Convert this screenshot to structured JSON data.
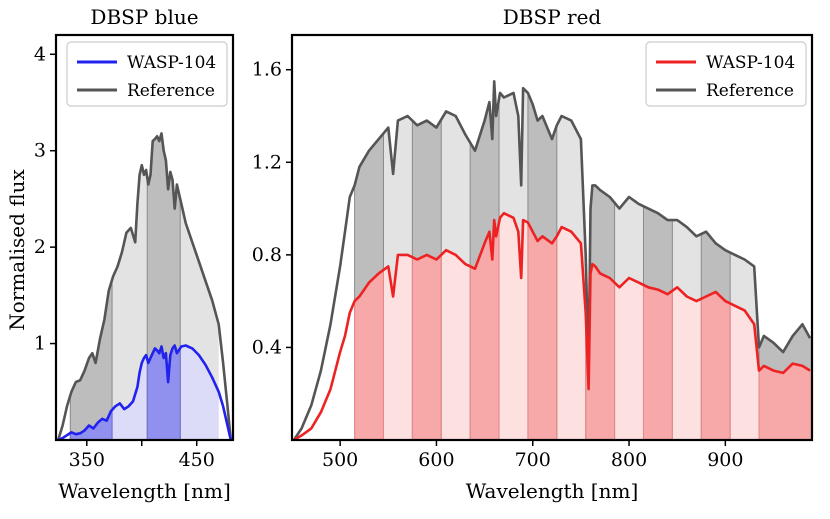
{
  "figure": {
    "ylabel": "Normalised flux"
  },
  "chart_data": [
    {
      "type": "line",
      "title": "DBSP blue",
      "xlabel": "Wavelength [nm]",
      "ylabel": "Normalised flux",
      "xlim": [
        322,
        483
      ],
      "ylim": [
        0,
        4.2
      ],
      "xticks": [
        350,
        400,
        450
      ],
      "xtick_labels": [
        "350",
        "",
        "450"
      ],
      "yticks": [
        1,
        2,
        3,
        4
      ],
      "ytick_labels": [
        "1",
        "2",
        "3",
        "4"
      ],
      "legend": {
        "position": "top-right",
        "entries": [
          {
            "label": "WASP-104",
            "color": "#2222ee"
          },
          {
            "label": "Reference",
            "color": "#555555"
          }
        ]
      },
      "bin_edges": [
        335,
        373,
        405,
        435,
        470
      ],
      "bin_colors": {
        "ref_dark": "#bdbdbd",
        "ref_light": "#e3e3e3",
        "tgt_dark": "#9090ee",
        "tgt_light": "#dcdcf8"
      },
      "series": [
        {
          "name": "Reference",
          "color": "#555555",
          "x": [
            324,
            328,
            332,
            336,
            340,
            344,
            348,
            352,
            355,
            358,
            362,
            366,
            370,
            374,
            378,
            382,
            386,
            390,
            394,
            396,
            398,
            400,
            402,
            404,
            406,
            408,
            410,
            412,
            414,
            416,
            418,
            420,
            422,
            424,
            426,
            428,
            430,
            432,
            436,
            440,
            446,
            452,
            458,
            464,
            470,
            474,
            478,
            481
          ],
          "y": [
            0.0,
            0.15,
            0.35,
            0.5,
            0.6,
            0.62,
            0.72,
            0.85,
            0.9,
            0.8,
            1.05,
            1.25,
            1.55,
            1.7,
            1.8,
            1.95,
            2.15,
            2.2,
            2.05,
            2.45,
            2.75,
            2.85,
            2.75,
            2.8,
            2.65,
            2.75,
            3.1,
            3.12,
            3.15,
            3.1,
            3.18,
            3.0,
            2.9,
            2.6,
            2.78,
            2.7,
            2.4,
            2.65,
            2.45,
            2.25,
            2.05,
            1.85,
            1.65,
            1.45,
            1.2,
            0.8,
            0.35,
            0.0
          ]
        },
        {
          "name": "WASP-104",
          "color": "#2222ee",
          "x": [
            324,
            328,
            332,
            336,
            340,
            344,
            348,
            352,
            356,
            360,
            364,
            368,
            372,
            376,
            380,
            384,
            388,
            392,
            396,
            398,
            400,
            402,
            404,
            406,
            408,
            410,
            412,
            414,
            416,
            418,
            420,
            422,
            424,
            426,
            428,
            430,
            432,
            436,
            440,
            446,
            452,
            458,
            464,
            470,
            474,
            478,
            481
          ],
          "y": [
            0.0,
            0.02,
            0.05,
            0.08,
            0.06,
            0.07,
            0.1,
            0.15,
            0.12,
            0.18,
            0.22,
            0.2,
            0.3,
            0.35,
            0.38,
            0.32,
            0.35,
            0.4,
            0.55,
            0.7,
            0.8,
            0.85,
            0.88,
            0.8,
            0.85,
            0.9,
            0.95,
            0.93,
            0.9,
            0.97,
            0.85,
            0.9,
            0.6,
            0.88,
            0.95,
            0.98,
            0.9,
            0.97,
            0.98,
            0.95,
            0.88,
            0.78,
            0.65,
            0.5,
            0.35,
            0.15,
            0.0
          ]
        }
      ]
    },
    {
      "type": "line",
      "title": "DBSP red",
      "xlabel": "Wavelength [nm]",
      "ylabel": "",
      "xlim": [
        450,
        990
      ],
      "ylim": [
        0,
        1.75
      ],
      "xticks": [
        500,
        600,
        700,
        800,
        900
      ],
      "xtick_labels": [
        "500",
        "600",
        "700",
        "800",
        "900"
      ],
      "yticks": [
        0.4,
        0.8,
        1.2,
        1.6
      ],
      "ytick_labels": [
        "0.4",
        "0.8",
        "1.2",
        "1.6"
      ],
      "legend": {
        "position": "top-right",
        "entries": [
          {
            "label": "WASP-104",
            "color": "#ee2222"
          },
          {
            "label": "Reference",
            "color": "#555555"
          }
        ]
      },
      "bin_edges": [
        515,
        545,
        575,
        605,
        635,
        665,
        695,
        725,
        755,
        785,
        815,
        845,
        875,
        905,
        935,
        990
      ],
      "bin_colors": {
        "ref_dark": "#bdbdbd",
        "ref_light": "#e3e3e3",
        "tgt_dark": "#f7a8a8",
        "tgt_light": "#fde0e0"
      },
      "series": [
        {
          "name": "Reference",
          "color": "#555555",
          "x": [
            452,
            460,
            470,
            480,
            490,
            500,
            505,
            510,
            515,
            520,
            530,
            540,
            550,
            555,
            560,
            570,
            580,
            590,
            600,
            610,
            620,
            630,
            640,
            650,
            655,
            658,
            660,
            662,
            664,
            666,
            670,
            680,
            685,
            688,
            690,
            695,
            700,
            705,
            710,
            720,
            725,
            730,
            740,
            750,
            755,
            758,
            760,
            762,
            765,
            770,
            780,
            790,
            800,
            810,
            820,
            830,
            840,
            850,
            860,
            870,
            880,
            890,
            900,
            910,
            920,
            930,
            935,
            940,
            950,
            960,
            970,
            980,
            988
          ],
          "y": [
            0.0,
            0.05,
            0.15,
            0.3,
            0.5,
            0.75,
            0.9,
            1.05,
            1.1,
            1.18,
            1.25,
            1.3,
            1.35,
            1.15,
            1.38,
            1.4,
            1.36,
            1.38,
            1.35,
            1.42,
            1.4,
            1.32,
            1.25,
            1.38,
            1.46,
            1.3,
            1.55,
            1.4,
            1.45,
            1.5,
            1.48,
            1.5,
            1.4,
            1.1,
            1.52,
            1.5,
            1.45,
            1.38,
            1.4,
            1.3,
            1.36,
            1.4,
            1.38,
            1.3,
            0.8,
            0.3,
            1.0,
            1.1,
            1.1,
            1.08,
            1.05,
            1.0,
            1.05,
            1.02,
            1.0,
            0.98,
            0.95,
            0.95,
            0.92,
            0.88,
            0.9,
            0.85,
            0.82,
            0.8,
            0.78,
            0.75,
            0.4,
            0.45,
            0.42,
            0.38,
            0.45,
            0.5,
            0.44
          ]
        },
        {
          "name": "WASP-104",
          "color": "#ee2222",
          "x": [
            452,
            460,
            470,
            480,
            490,
            500,
            505,
            510,
            515,
            520,
            530,
            540,
            550,
            555,
            560,
            570,
            580,
            590,
            600,
            610,
            620,
            630,
            640,
            650,
            655,
            658,
            660,
            662,
            664,
            666,
            670,
            680,
            685,
            688,
            690,
            695,
            700,
            705,
            710,
            720,
            725,
            730,
            740,
            750,
            755,
            758,
            760,
            762,
            765,
            770,
            780,
            790,
            800,
            810,
            820,
            830,
            840,
            850,
            860,
            870,
            880,
            890,
            900,
            910,
            920,
            930,
            935,
            940,
            950,
            960,
            970,
            980,
            988
          ],
          "y": [
            0.0,
            0.02,
            0.05,
            0.12,
            0.22,
            0.38,
            0.45,
            0.55,
            0.6,
            0.62,
            0.68,
            0.72,
            0.75,
            0.62,
            0.8,
            0.8,
            0.78,
            0.8,
            0.78,
            0.82,
            0.8,
            0.76,
            0.74,
            0.85,
            0.9,
            0.78,
            0.95,
            0.88,
            0.92,
            0.96,
            0.98,
            0.96,
            0.9,
            0.7,
            0.95,
            0.94,
            0.9,
            0.86,
            0.88,
            0.85,
            0.88,
            0.92,
            0.9,
            0.85,
            0.55,
            0.22,
            0.72,
            0.76,
            0.75,
            0.72,
            0.7,
            0.66,
            0.7,
            0.68,
            0.66,
            0.65,
            0.63,
            0.66,
            0.62,
            0.6,
            0.62,
            0.64,
            0.6,
            0.58,
            0.56,
            0.5,
            0.3,
            0.32,
            0.3,
            0.29,
            0.33,
            0.32,
            0.3
          ]
        }
      ]
    }
  ]
}
